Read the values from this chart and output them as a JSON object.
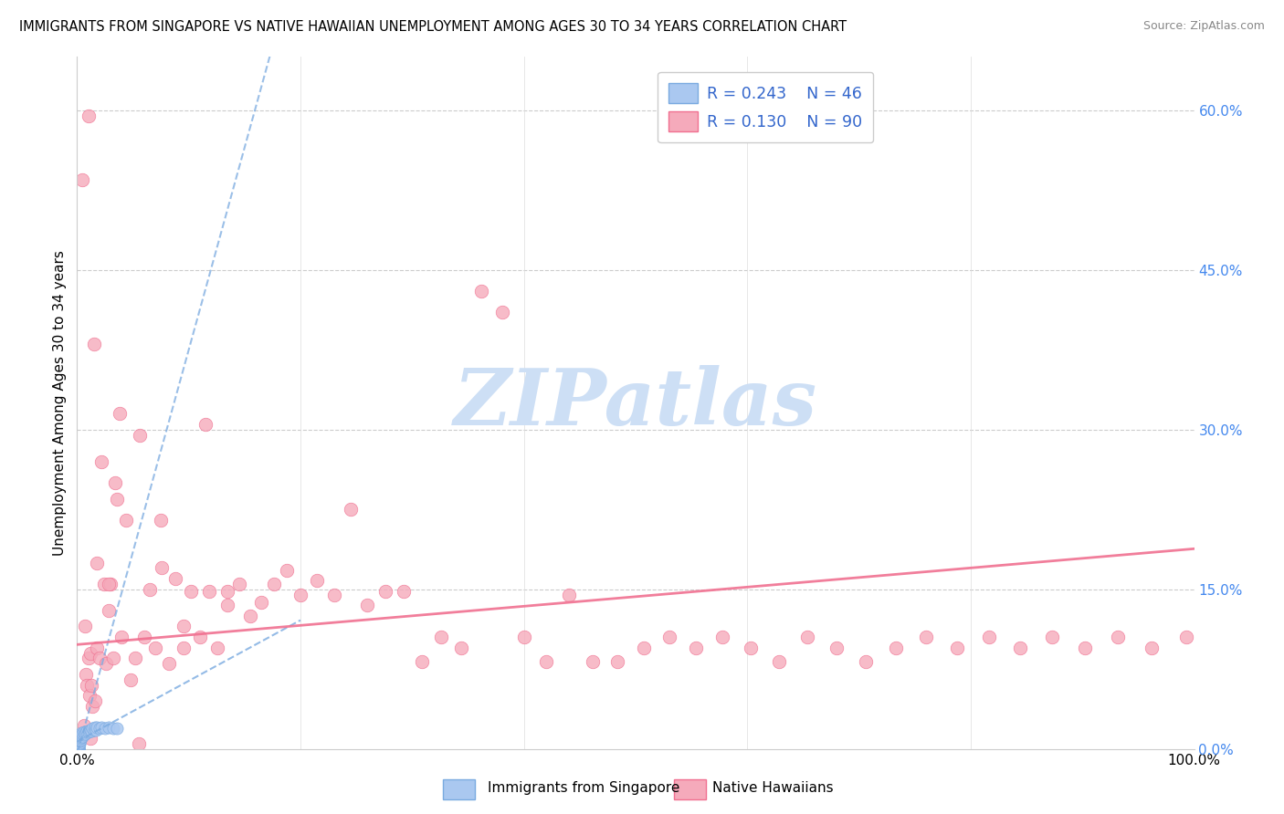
{
  "title": "IMMIGRANTS FROM SINGAPORE VS NATIVE HAWAIIAN UNEMPLOYMENT AMONG AGES 30 TO 34 YEARS CORRELATION CHART",
  "source": "Source: ZipAtlas.com",
  "ylabel": "Unemployment Among Ages 30 to 34 years",
  "y_tick_labels_right": [
    "0.0%",
    "15.0%",
    "30.0%",
    "45.0%",
    "60.0%"
  ],
  "y_ticks_right": [
    0.0,
    0.15,
    0.3,
    0.45,
    0.6
  ],
  "xlim": [
    0.0,
    1.0
  ],
  "ylim": [
    0.0,
    0.65
  ],
  "legend_r1": "0.243",
  "legend_n1": "46",
  "legend_r2": "0.130",
  "legend_n2": "90",
  "color_sg": "#aac8f0",
  "color_nh": "#f5aabb",
  "color_sg_edge": "#7aaae0",
  "color_nh_edge": "#f07090",
  "trendline_sg_color": "#7aaae0",
  "trendline_nh_color": "#f07090",
  "watermark": "ZIPatlas",
  "watermark_color": "#cddff5",
  "sg_label": "Immigrants from Singapore",
  "nh_label": "Native Hawaiians",
  "singapore_x": [
    0.001,
    0.001,
    0.001,
    0.001,
    0.001,
    0.001,
    0.001,
    0.001,
    0.001,
    0.001,
    0.002,
    0.002,
    0.002,
    0.002,
    0.002,
    0.002,
    0.002,
    0.003,
    0.003,
    0.003,
    0.003,
    0.004,
    0.004,
    0.004,
    0.005,
    0.005,
    0.006,
    0.006,
    0.007,
    0.008,
    0.009,
    0.01,
    0.011,
    0.012,
    0.013,
    0.014,
    0.015,
    0.016,
    0.017,
    0.018,
    0.02,
    0.022,
    0.025,
    0.028,
    0.032,
    0.036
  ],
  "singapore_y": [
    0.0,
    0.0,
    0.0,
    0.0,
    0.0,
    0.001,
    0.002,
    0.003,
    0.004,
    0.005,
    0.005,
    0.006,
    0.007,
    0.008,
    0.009,
    0.01,
    0.011,
    0.008,
    0.01,
    0.012,
    0.013,
    0.011,
    0.013,
    0.015,
    0.012,
    0.014,
    0.013,
    0.016,
    0.014,
    0.016,
    0.017,
    0.016,
    0.017,
    0.018,
    0.017,
    0.019,
    0.018,
    0.02,
    0.018,
    0.02,
    0.019,
    0.02,
    0.019,
    0.02,
    0.019,
    0.019
  ],
  "hawaiian_x": [
    0.005,
    0.006,
    0.007,
    0.008,
    0.009,
    0.01,
    0.011,
    0.012,
    0.013,
    0.014,
    0.015,
    0.016,
    0.018,
    0.02,
    0.022,
    0.024,
    0.026,
    0.028,
    0.03,
    0.032,
    0.034,
    0.036,
    0.04,
    0.044,
    0.048,
    0.052,
    0.056,
    0.06,
    0.065,
    0.07,
    0.076,
    0.082,
    0.088,
    0.095,
    0.102,
    0.11,
    0.118,
    0.126,
    0.135,
    0.145,
    0.155,
    0.165,
    0.176,
    0.188,
    0.2,
    0.215,
    0.23,
    0.245,
    0.26,
    0.276,
    0.292,
    0.309,
    0.326,
    0.344,
    0.362,
    0.381,
    0.4,
    0.42,
    0.44,
    0.462,
    0.484,
    0.507,
    0.53,
    0.554,
    0.578,
    0.603,
    0.628,
    0.654,
    0.68,
    0.706,
    0.733,
    0.76,
    0.788,
    0.816,
    0.844,
    0.873,
    0.902,
    0.932,
    0.962,
    0.993,
    0.01,
    0.012,
    0.018,
    0.028,
    0.038,
    0.055,
    0.075,
    0.095,
    0.115,
    0.135
  ],
  "hawaiian_y": [
    0.535,
    0.022,
    0.115,
    0.07,
    0.06,
    0.085,
    0.05,
    0.09,
    0.06,
    0.04,
    0.38,
    0.045,
    0.095,
    0.085,
    0.27,
    0.155,
    0.08,
    0.13,
    0.155,
    0.085,
    0.25,
    0.235,
    0.105,
    0.215,
    0.065,
    0.085,
    0.295,
    0.105,
    0.15,
    0.095,
    0.17,
    0.08,
    0.16,
    0.095,
    0.148,
    0.105,
    0.148,
    0.095,
    0.135,
    0.155,
    0.125,
    0.138,
    0.155,
    0.168,
    0.145,
    0.158,
    0.145,
    0.225,
    0.135,
    0.148,
    0.148,
    0.082,
    0.105,
    0.095,
    0.43,
    0.41,
    0.105,
    0.082,
    0.145,
    0.082,
    0.082,
    0.095,
    0.105,
    0.095,
    0.105,
    0.095,
    0.082,
    0.105,
    0.095,
    0.082,
    0.095,
    0.105,
    0.095,
    0.105,
    0.095,
    0.105,
    0.095,
    0.105,
    0.095,
    0.105,
    0.595,
    0.01,
    0.175,
    0.155,
    0.315,
    0.005,
    0.215,
    0.115,
    0.305,
    0.148
  ]
}
